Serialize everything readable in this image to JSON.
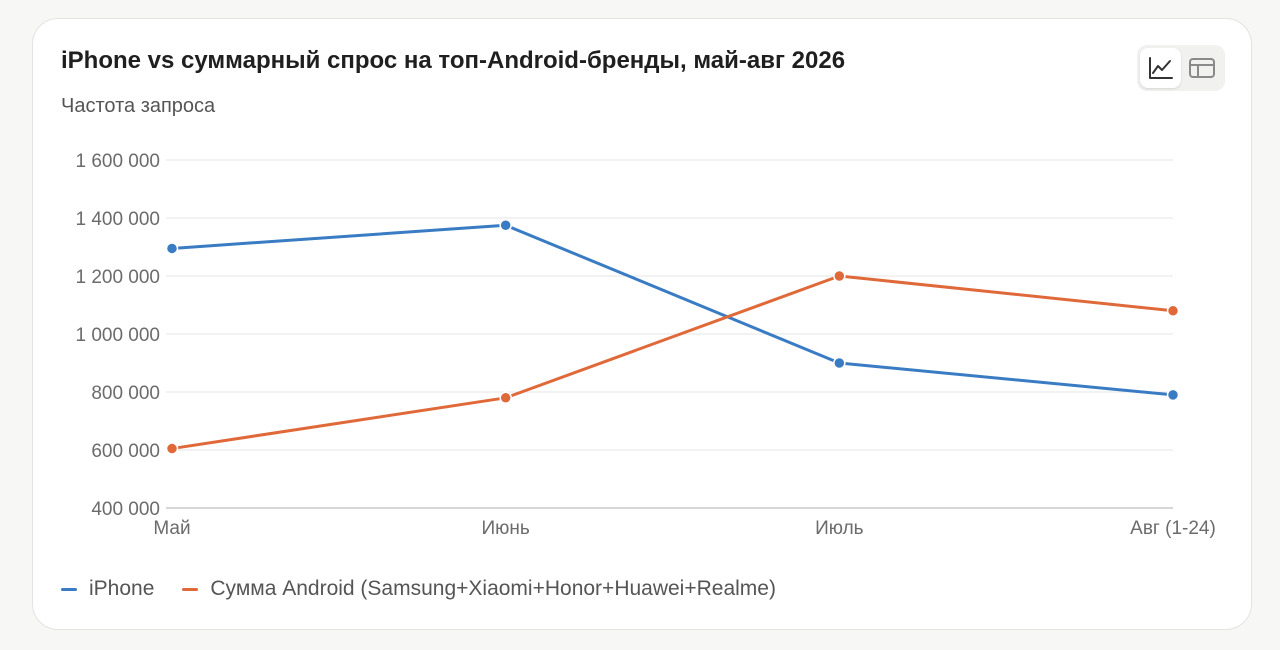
{
  "colors": {
    "iphone": "#3a7cc4",
    "android": "#e0693a",
    "grid": "#e6e6e6",
    "axis": "#c9c9c9"
  },
  "toolbar": {
    "line_view_icon": "line-chart-icon",
    "table_view_icon": "table-icon"
  },
  "chart_data": {
    "type": "line",
    "title": "iPhone vs суммарный спрос на топ-Android-бренды, май-авг 2026",
    "ylabel": "Частота запроса",
    "xlabel": "",
    "categories": [
      "Май",
      "Июнь",
      "Июль",
      "Авг (1-24)"
    ],
    "ylim": [
      400000,
      1600000
    ],
    "yticks": [
      400000,
      600000,
      800000,
      1000000,
      1200000,
      1400000,
      1600000
    ],
    "ytick_labels": [
      "400 000",
      "600 000",
      "800 000",
      "1 000 000",
      "1 200 000",
      "1 400 000",
      "1 600 000"
    ],
    "grid": true,
    "legend_position": "bottom-left",
    "series": [
      {
        "name": "iPhone",
        "color_key": "iphone",
        "values": [
          1295000,
          1375000,
          900000,
          790000
        ]
      },
      {
        "name": "Сумма Android (Samsung+Xiaomi+Honor+Huawei+Realme)",
        "color_key": "android",
        "values": [
          605000,
          780000,
          1200000,
          1080000
        ]
      }
    ]
  }
}
